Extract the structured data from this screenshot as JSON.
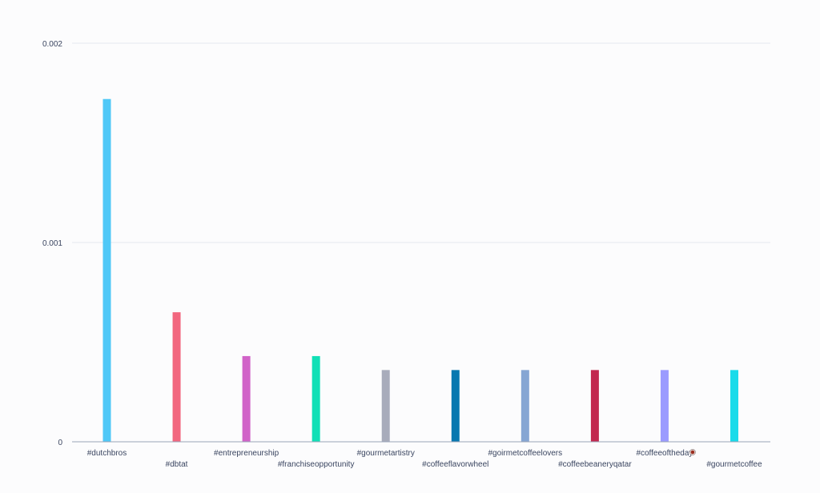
{
  "chart_data": {
    "type": "bar",
    "title": "",
    "xlabel": "",
    "ylabel": "",
    "ylim": [
      0,
      0.002
    ],
    "yticks": [
      {
        "value": 0,
        "label": "0"
      },
      {
        "value": 0.001,
        "label": "0.001"
      },
      {
        "value": 0.002,
        "label": "0.002"
      }
    ],
    "grid": true,
    "legend": "none",
    "categories": [
      "#dutchbros",
      "#dbtat",
      "#entrepreneurship",
      "#franchiseopportunity",
      "#gourmetartistry",
      "#coffeeflavorwheel",
      "#goirmetcoffeelovers",
      "#coffeebeaneryqatar",
      "#coffeeoftheday",
      "#gourmetcoffee"
    ],
    "values": [
      0.00172,
      0.00065,
      0.00043,
      0.00043,
      0.00036,
      0.00036,
      0.00036,
      0.00036,
      0.00036,
      0.00036
    ],
    "colors": [
      "#4fc8f7",
      "#f2677f",
      "#d163c8",
      "#11e0b6",
      "#a8acbb",
      "#0878b0",
      "#86a6d3",
      "#c2284f",
      "#9b9bff",
      "#19dbea"
    ],
    "annotations": [
      {
        "category": "#coffeeoftheday",
        "icon": "coffee-cup-icon"
      }
    ]
  }
}
